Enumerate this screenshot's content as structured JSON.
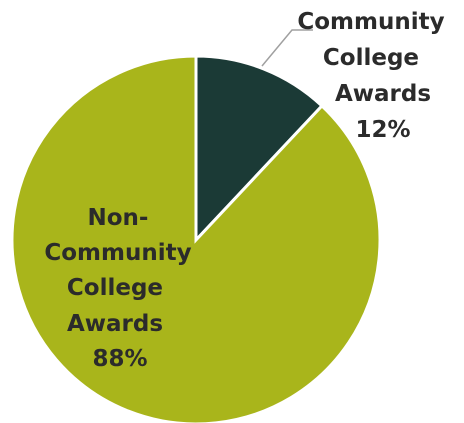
{
  "chart_data": {
    "type": "pie",
    "title": "",
    "slices": [
      {
        "label_lines": [
          "Community",
          "College",
          "Awards"
        ],
        "percent_label": "12%",
        "value": 12,
        "color": "#1b3a36"
      },
      {
        "label_lines": [
          "Non-",
          "Community",
          "College",
          "Awards"
        ],
        "percent_label": "88%",
        "value": 88,
        "color": "#a9b51b"
      }
    ],
    "legend": "none",
    "data_labels": true
  }
}
